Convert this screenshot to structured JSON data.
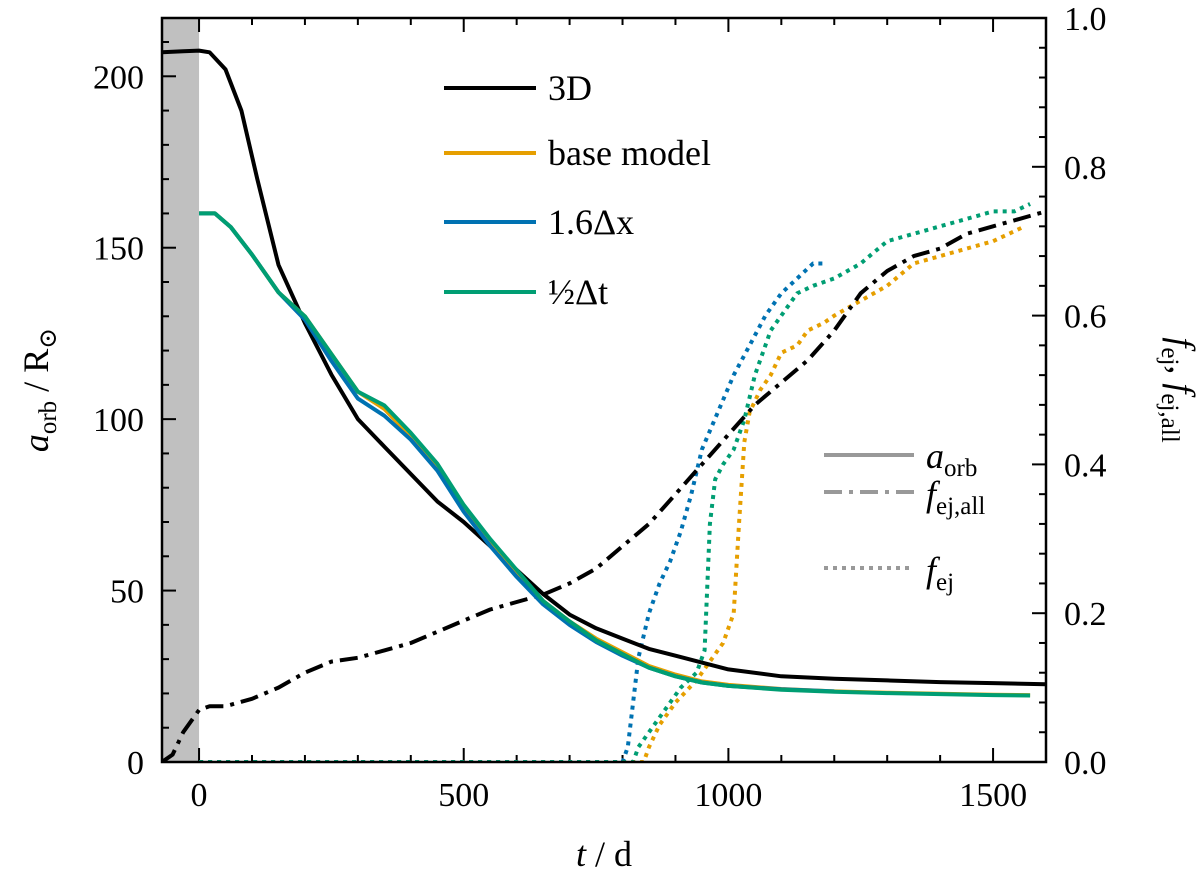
{
  "chart_data": {
    "type": "line",
    "xlabel": "t / d",
    "ylabel_left": "a_orb / R_⊙",
    "ylabel_right": "f_ej, f_ej,all",
    "xlim": [
      -70,
      1600
    ],
    "ylim_left": [
      0,
      217
    ],
    "ylim_right": [
      0,
      1.0
    ],
    "shaded_region": [
      -70,
      0
    ],
    "xticks": [
      0,
      500,
      1000,
      1500
    ],
    "yticks_left": [
      0,
      50,
      100,
      150,
      200
    ],
    "yticks_right": [
      0.0,
      0.2,
      0.4,
      0.6,
      0.8,
      1.0
    ],
    "xtick_labels": [
      "0",
      "500",
      "1000",
      "1500"
    ],
    "ytick_labels_left": [
      "0",
      "50",
      "100",
      "150",
      "200"
    ],
    "ytick_labels_right": [
      "0.0",
      "0.2",
      "0.4",
      "0.6",
      "0.8",
      "1.0"
    ],
    "legend_models": [
      {
        "label": "3D",
        "color": "#000000"
      },
      {
        "label": "base model",
        "color": "#E69F00"
      },
      {
        "label": "1.6Δx",
        "color": "#0072B2"
      },
      {
        "label": "½Δt",
        "color": "#009E73"
      }
    ],
    "legend_styles": [
      {
        "label": "a_orb",
        "style": "solid"
      },
      {
        "label": "f_ej,all",
        "style": "dashdot"
      },
      {
        "label": "f_ej",
        "style": "dotted"
      }
    ],
    "series": [
      {
        "name": "3D a_orb",
        "axis": "left",
        "color": "#000000",
        "style": "solid",
        "x": [
          -70,
          -30,
          0,
          20,
          50,
          80,
          110,
          150,
          200,
          250,
          300,
          350,
          400,
          450,
          500,
          550,
          600,
          650,
          700,
          750,
          800,
          850,
          900,
          950,
          1000,
          1100,
          1200,
          1300,
          1400,
          1500,
          1600
        ],
        "y": [
          207,
          207.3,
          207.5,
          207,
          202,
          190,
          170,
          145,
          128,
          113,
          100,
          92,
          84,
          76,
          70,
          63,
          56,
          49,
          43,
          39,
          36,
          33,
          31,
          29,
          27,
          25,
          24.3,
          23.8,
          23.3,
          23,
          22.7
        ]
      },
      {
        "name": "base model a_orb",
        "axis": "left",
        "color": "#E69F00",
        "style": "solid",
        "x": [
          0,
          30,
          60,
          100,
          150,
          200,
          250,
          300,
          350,
          400,
          450,
          500,
          550,
          600,
          650,
          700,
          750,
          800,
          850,
          900,
          950,
          1000,
          1100,
          1200,
          1300,
          1400,
          1500,
          1570
        ],
        "y": [
          160,
          160,
          156,
          148,
          137,
          130,
          119,
          108,
          103,
          95,
          86,
          74,
          64,
          55,
          47,
          41,
          36,
          32,
          28,
          25.5,
          23.5,
          22.5,
          21.3,
          20.6,
          20.2,
          19.9,
          19.6,
          19.5
        ]
      },
      {
        "name": "1.6Δx a_orb",
        "axis": "left",
        "color": "#0072B2",
        "style": "solid",
        "x": [
          0,
          30,
          60,
          100,
          150,
          200,
          250,
          300,
          350,
          400,
          450,
          500,
          550,
          600,
          650,
          700,
          750,
          800,
          850,
          900,
          950,
          1000,
          1100,
          1200
        ],
        "y": [
          160,
          160,
          156,
          148,
          137,
          129,
          117,
          106,
          101,
          94,
          85,
          73,
          63,
          54,
          46,
          40,
          35,
          31,
          27.5,
          25,
          23.2,
          22.2,
          21.2,
          20.6
        ]
      },
      {
        "name": "½Δt a_orb",
        "axis": "left",
        "color": "#009E73",
        "style": "solid",
        "x": [
          0,
          30,
          60,
          100,
          150,
          200,
          250,
          300,
          350,
          400,
          450,
          500,
          550,
          600,
          650,
          700,
          750,
          800,
          850,
          900,
          950,
          1000,
          1100,
          1200,
          1300,
          1400,
          1500,
          1570
        ],
        "y": [
          160,
          160,
          156,
          148,
          137,
          130,
          119,
          108,
          104,
          96,
          87,
          75,
          65,
          56,
          47,
          41,
          35.5,
          31.5,
          27.5,
          25,
          23.2,
          22.2,
          21.1,
          20.5,
          20.1,
          19.8,
          19.5,
          19.4
        ]
      },
      {
        "name": "3D f_ej,all",
        "axis": "right",
        "color": "#000000",
        "style": "dashdot",
        "x": [
          -70,
          -50,
          -30,
          -10,
          0,
          20,
          50,
          100,
          150,
          200,
          250,
          300,
          350,
          400,
          450,
          500,
          550,
          600,
          650,
          700,
          750,
          800,
          850,
          900,
          950,
          1000,
          1050,
          1100,
          1150,
          1200,
          1250,
          1300,
          1350,
          1400,
          1450,
          1500,
          1550,
          1600
        ],
        "y": [
          0,
          0.01,
          0.04,
          0.06,
          0.07,
          0.075,
          0.075,
          0.085,
          0.1,
          0.12,
          0.135,
          0.14,
          0.15,
          0.16,
          0.175,
          0.19,
          0.205,
          0.215,
          0.225,
          0.24,
          0.26,
          0.29,
          0.32,
          0.36,
          0.4,
          0.44,
          0.48,
          0.51,
          0.54,
          0.58,
          0.63,
          0.66,
          0.68,
          0.69,
          0.71,
          0.72,
          0.73,
          0.74
        ]
      },
      {
        "name": "base model f_ej",
        "axis": "right",
        "color": "#E69F00",
        "style": "dotted",
        "x": [
          0,
          840,
          850,
          870,
          900,
          940,
          970,
          990,
          1010,
          1020,
          1030,
          1040,
          1060,
          1080,
          1100,
          1130,
          1150,
          1180,
          1200,
          1250,
          1300,
          1350,
          1400,
          1450,
          1500,
          1530,
          1560
        ],
        "y": [
          0,
          0,
          0.02,
          0.05,
          0.08,
          0.11,
          0.14,
          0.16,
          0.2,
          0.32,
          0.43,
          0.47,
          0.5,
          0.52,
          0.55,
          0.56,
          0.58,
          0.59,
          0.6,
          0.62,
          0.64,
          0.67,
          0.68,
          0.69,
          0.7,
          0.71,
          0.72
        ]
      },
      {
        "name": "1.6Δx f_ej",
        "axis": "right",
        "color": "#0072B2",
        "style": "dotted",
        "x": [
          0,
          800,
          810,
          820,
          830,
          850,
          870,
          890,
          910,
          930,
          950,
          980,
          1010,
          1040,
          1070,
          1100,
          1130,
          1160,
          1180
        ],
        "y": [
          0,
          0,
          0.02,
          0.08,
          0.14,
          0.2,
          0.24,
          0.27,
          0.31,
          0.36,
          0.42,
          0.47,
          0.52,
          0.56,
          0.6,
          0.63,
          0.65,
          0.67,
          0.67
        ]
      },
      {
        "name": "½Δt f_ej",
        "axis": "right",
        "color": "#009E73",
        "style": "dotted",
        "x": [
          0,
          820,
          830,
          850,
          880,
          910,
          940,
          955,
          965,
          975,
          990,
          1010,
          1030,
          1050,
          1080,
          1100,
          1130,
          1160,
          1200,
          1250,
          1300,
          1350,
          1400,
          1450,
          1500,
          1540,
          1570
        ],
        "y": [
          0,
          0,
          0.02,
          0.04,
          0.07,
          0.1,
          0.12,
          0.15,
          0.32,
          0.38,
          0.4,
          0.42,
          0.46,
          0.52,
          0.58,
          0.6,
          0.63,
          0.64,
          0.65,
          0.67,
          0.7,
          0.71,
          0.72,
          0.73,
          0.74,
          0.74,
          0.75
        ]
      }
    ]
  }
}
